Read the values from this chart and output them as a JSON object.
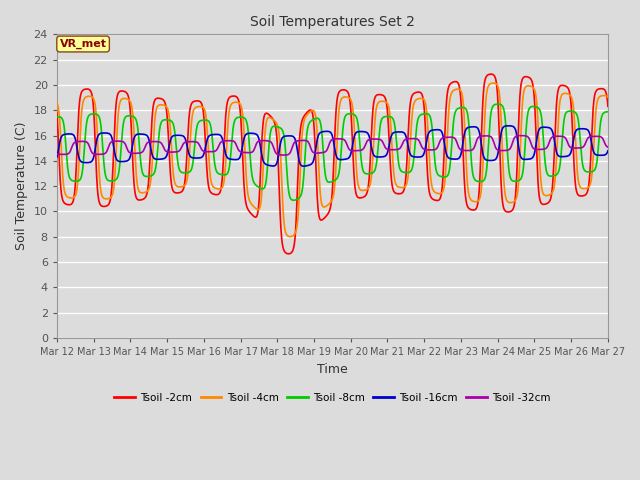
{
  "title": "Soil Temperatures Set 2",
  "xlabel": "Time",
  "ylabel": "Soil Temperature (C)",
  "ylim": [
    0,
    24
  ],
  "yticks": [
    0,
    2,
    4,
    6,
    8,
    10,
    12,
    14,
    16,
    18,
    20,
    22,
    24
  ],
  "bg_color": "#dcdcdc",
  "plot_bg_color": "#dcdcdc",
  "grid_color": "#ffffff",
  "annotation_text": "VR_met",
  "annotation_bg": "#ffff99",
  "annotation_border": "#8b4513",
  "series": [
    {
      "label": "Tsoil -2cm",
      "color": "#ff0000",
      "lw": 1.2
    },
    {
      "label": "Tsoil -4cm",
      "color": "#ff8800",
      "lw": 1.2
    },
    {
      "label": "Tsoil -8cm",
      "color": "#00cc00",
      "lw": 1.2
    },
    {
      "label": "Tsoil -16cm",
      "color": "#0000cc",
      "lw": 1.2
    },
    {
      "label": "Tsoil -32cm",
      "color": "#aa00aa",
      "lw": 1.2
    }
  ],
  "x_tick_labels": [
    "Mar 12",
    "Mar 13",
    "Mar 14",
    "Mar 15",
    "Mar 16",
    "Mar 17",
    "Mar 18",
    "Mar 19",
    "Mar 20",
    "Mar 21",
    "Mar 22",
    "Mar 23",
    "Mar 24",
    "Mar 25",
    "Mar 26",
    "Mar 27"
  ],
  "n_days": 15,
  "points_per_day": 144
}
